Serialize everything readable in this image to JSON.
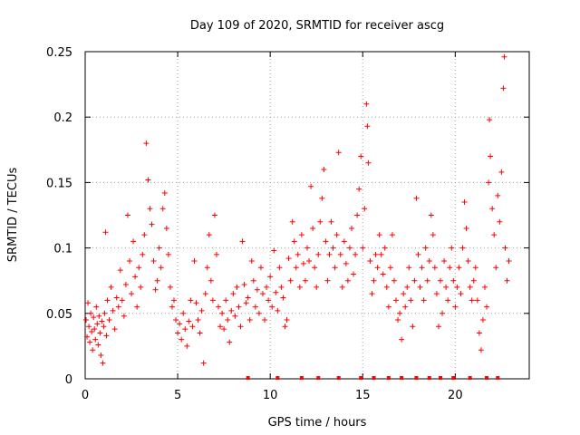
{
  "chart_data": {
    "type": "scatter",
    "title": "Day 109 of 2020, SRMTID for receiver ascg",
    "xlabel": "GPS time / hours",
    "ylabel": "SRMTID / TECUs",
    "xlim": [
      0,
      24
    ],
    "ylim": [
      0,
      0.25
    ],
    "grid": true,
    "marker": "+",
    "marker_color": "#ff0000",
    "x_ticks": [
      {
        "value": 0,
        "label": "0"
      },
      {
        "value": 5,
        "label": "5"
      },
      {
        "value": 10,
        "label": "10"
      },
      {
        "value": 15,
        "label": "15"
      },
      {
        "value": 20,
        "label": "20"
      }
    ],
    "y_ticks": [
      {
        "value": 0,
        "label": "0"
      },
      {
        "value": 0.05,
        "label": "0.05"
      },
      {
        "value": 0.1,
        "label": "0.1"
      },
      {
        "value": 0.15,
        "label": "0.15"
      },
      {
        "value": 0.2,
        "label": "0.2"
      },
      {
        "value": 0.25,
        "label": "0.25"
      }
    ],
    "series": [
      {
        "name": "SRMTID",
        "points": [
          [
            0.05,
            0.045
          ],
          [
            0.1,
            0.032
          ],
          [
            0.15,
            0.058
          ],
          [
            0.2,
            0.04
          ],
          [
            0.25,
            0.028
          ],
          [
            0.3,
            0.05
          ],
          [
            0.35,
            0.036
          ],
          [
            0.4,
            0.022
          ],
          [
            0.45,
            0.047
          ],
          [
            0.5,
            0.038
          ],
          [
            0.55,
            0.03
          ],
          [
            0.6,
            0.055
          ],
          [
            0.65,
            0.042
          ],
          [
            0.7,
            0.026
          ],
          [
            0.75,
            0.048
          ],
          [
            0.8,
            0.035
          ],
          [
            0.85,
            0.018
          ],
          [
            0.9,
            0.044
          ],
          [
            0.95,
            0.012
          ],
          [
            1.0,
            0.04
          ],
          [
            1.05,
            0.05
          ],
          [
            1.1,
            0.112
          ],
          [
            1.15,
            0.033
          ],
          [
            1.2,
            0.06
          ],
          [
            1.3,
            0.045
          ],
          [
            1.4,
            0.07
          ],
          [
            1.5,
            0.052
          ],
          [
            1.6,
            0.038
          ],
          [
            1.7,
            0.062
          ],
          [
            1.8,
            0.055
          ],
          [
            1.9,
            0.083
          ],
          [
            2.0,
            0.06
          ],
          [
            2.1,
            0.048
          ],
          [
            2.2,
            0.072
          ],
          [
            2.3,
            0.125
          ],
          [
            2.4,
            0.09
          ],
          [
            2.5,
            0.065
          ],
          [
            2.6,
            0.105
          ],
          [
            2.7,
            0.078
          ],
          [
            2.8,
            0.055
          ],
          [
            2.9,
            0.085
          ],
          [
            3.0,
            0.07
          ],
          [
            3.1,
            0.095
          ],
          [
            3.2,
            0.11
          ],
          [
            3.3,
            0.18
          ],
          [
            3.4,
            0.152
          ],
          [
            3.5,
            0.13
          ],
          [
            3.6,
            0.118
          ],
          [
            3.7,
            0.09
          ],
          [
            3.8,
            0.068
          ],
          [
            3.9,
            0.075
          ],
          [
            4.0,
            0.1
          ],
          [
            4.1,
            0.085
          ],
          [
            4.2,
            0.13
          ],
          [
            4.3,
            0.142
          ],
          [
            4.4,
            0.115
          ],
          [
            4.5,
            0.095
          ],
          [
            4.6,
            0.07
          ],
          [
            4.7,
            0.055
          ],
          [
            4.8,
            0.06
          ],
          [
            4.9,
            0.045
          ],
          [
            5.0,
            0.035
          ],
          [
            5.1,
            0.042
          ],
          [
            5.2,
            0.03
          ],
          [
            5.3,
            0.05
          ],
          [
            5.4,
            0.038
          ],
          [
            5.5,
            0.025
          ],
          [
            5.6,
            0.044
          ],
          [
            5.7,
            0.06
          ],
          [
            5.8,
            0.04
          ],
          [
            5.9,
            0.09
          ],
          [
            6.0,
            0.058
          ],
          [
            6.1,
            0.045
          ],
          [
            6.2,
            0.035
          ],
          [
            6.3,
            0.052
          ],
          [
            6.4,
            0.012
          ],
          [
            6.5,
            0.065
          ],
          [
            6.6,
            0.085
          ],
          [
            6.7,
            0.11
          ],
          [
            6.8,
            0.075
          ],
          [
            6.9,
            0.06
          ],
          [
            7.0,
            0.125
          ],
          [
            7.1,
            0.095
          ],
          [
            7.2,
            0.055
          ],
          [
            7.3,
            0.04
          ],
          [
            7.4,
            0.05
          ],
          [
            7.5,
            0.038
          ],
          [
            7.6,
            0.06
          ],
          [
            7.7,
            0.045
          ],
          [
            7.8,
            0.028
          ],
          [
            7.9,
            0.052
          ],
          [
            8.0,
            0.065
          ],
          [
            8.1,
            0.048
          ],
          [
            8.2,
            0.07
          ],
          [
            8.3,
            0.055
          ],
          [
            8.4,
            0.04
          ],
          [
            8.5,
            0.105
          ],
          [
            8.6,
            0.072
          ],
          [
            8.7,
            0.058
          ],
          [
            8.8,
            0.062
          ],
          [
            8.9,
            0.045
          ],
          [
            9.0,
            0.09
          ],
          [
            9.1,
            0.075
          ],
          [
            9.2,
            0.055
          ],
          [
            9.3,
            0.068
          ],
          [
            9.4,
            0.05
          ],
          [
            9.5,
            0.085
          ],
          [
            9.6,
            0.065
          ],
          [
            9.7,
            0.045
          ],
          [
            9.8,
            0.07
          ],
          [
            9.9,
            0.06
          ],
          [
            10.0,
            0.078
          ],
          [
            10.1,
            0.055
          ],
          [
            10.2,
            0.098
          ],
          [
            10.3,
            0.066
          ],
          [
            10.4,
            0.052
          ],
          [
            10.5,
            0.085
          ],
          [
            10.6,
            0.07
          ],
          [
            10.7,
            0.062
          ],
          [
            10.8,
            0.04
          ],
          [
            10.9,
            0.045
          ],
          [
            11.0,
            0.092
          ],
          [
            11.1,
            0.075
          ],
          [
            11.2,
            0.12
          ],
          [
            11.3,
            0.105
          ],
          [
            11.4,
            0.085
          ],
          [
            11.5,
            0.095
          ],
          [
            11.6,
            0.07
          ],
          [
            11.7,
            0.11
          ],
          [
            11.8,
            0.088
          ],
          [
            11.9,
            0.075
          ],
          [
            12.0,
            0.1
          ],
          [
            12.1,
            0.09
          ],
          [
            12.2,
            0.147
          ],
          [
            12.3,
            0.115
          ],
          [
            12.4,
            0.085
          ],
          [
            12.5,
            0.07
          ],
          [
            12.6,
            0.095
          ],
          [
            12.7,
            0.12
          ],
          [
            12.8,
            0.138
          ],
          [
            12.9,
            0.16
          ],
          [
            13.0,
            0.105
          ],
          [
            13.1,
            0.075
          ],
          [
            13.2,
            0.095
          ],
          [
            13.3,
            0.12
          ],
          [
            13.4,
            0.1
          ],
          [
            13.5,
            0.085
          ],
          [
            13.6,
            0.11
          ],
          [
            13.7,
            0.173
          ],
          [
            13.8,
            0.095
          ],
          [
            13.9,
            0.07
          ],
          [
            14.0,
            0.105
          ],
          [
            14.1,
            0.088
          ],
          [
            14.2,
            0.075
          ],
          [
            14.3,
            0.1
          ],
          [
            14.4,
            0.115
          ],
          [
            14.5,
            0.08
          ],
          [
            14.6,
            0.095
          ],
          [
            14.7,
            0.125
          ],
          [
            14.8,
            0.145
          ],
          [
            14.9,
            0.17
          ],
          [
            15.0,
            0.1
          ],
          [
            15.1,
            0.13
          ],
          [
            15.2,
            0.21
          ],
          [
            15.25,
            0.193
          ],
          [
            15.3,
            0.165
          ],
          [
            15.4,
            0.09
          ],
          [
            15.5,
            0.065
          ],
          [
            15.6,
            0.075
          ],
          [
            15.7,
            0.095
          ],
          [
            15.8,
            0.085
          ],
          [
            15.9,
            0.11
          ],
          [
            16.0,
            0.095
          ],
          [
            16.1,
            0.08
          ],
          [
            16.2,
            0.1
          ],
          [
            16.3,
            0.07
          ],
          [
            16.4,
            0.055
          ],
          [
            16.5,
            0.085
          ],
          [
            16.6,
            0.11
          ],
          [
            16.7,
            0.075
          ],
          [
            16.8,
            0.06
          ],
          [
            16.9,
            0.045
          ],
          [
            17.0,
            0.05
          ],
          [
            17.1,
            0.03
          ],
          [
            17.2,
            0.065
          ],
          [
            17.3,
            0.055
          ],
          [
            17.4,
            0.07
          ],
          [
            17.5,
            0.085
          ],
          [
            17.6,
            0.06
          ],
          [
            17.7,
            0.04
          ],
          [
            17.8,
            0.075
          ],
          [
            17.9,
            0.138
          ],
          [
            18.0,
            0.095
          ],
          [
            18.1,
            0.07
          ],
          [
            18.2,
            0.085
          ],
          [
            18.3,
            0.06
          ],
          [
            18.4,
            0.1
          ],
          [
            18.5,
            0.075
          ],
          [
            18.6,
            0.09
          ],
          [
            18.7,
            0.125
          ],
          [
            18.8,
            0.11
          ],
          [
            18.9,
            0.085
          ],
          [
            19.0,
            0.065
          ],
          [
            19.1,
            0.04
          ],
          [
            19.2,
            0.075
          ],
          [
            19.3,
            0.05
          ],
          [
            19.4,
            0.09
          ],
          [
            19.5,
            0.07
          ],
          [
            19.6,
            0.06
          ],
          [
            19.7,
            0.085
          ],
          [
            19.8,
            0.1
          ],
          [
            19.9,
            0.075
          ],
          [
            20.0,
            0.055
          ],
          [
            20.1,
            0.07
          ],
          [
            20.2,
            0.085
          ],
          [
            20.3,
            0.065
          ],
          [
            20.4,
            0.1
          ],
          [
            20.5,
            0.135
          ],
          [
            20.6,
            0.115
          ],
          [
            20.7,
            0.09
          ],
          [
            20.8,
            0.07
          ],
          [
            20.9,
            0.06
          ],
          [
            21.0,
            0.075
          ],
          [
            21.1,
            0.085
          ],
          [
            21.2,
            0.06
          ],
          [
            21.3,
            0.035
          ],
          [
            21.4,
            0.022
          ],
          [
            21.5,
            0.045
          ],
          [
            21.6,
            0.07
          ],
          [
            21.7,
            0.055
          ],
          [
            21.8,
            0.15
          ],
          [
            21.85,
            0.198
          ],
          [
            21.9,
            0.17
          ],
          [
            22.0,
            0.13
          ],
          [
            22.1,
            0.11
          ],
          [
            22.2,
            0.085
          ],
          [
            22.3,
            0.14
          ],
          [
            22.4,
            0.12
          ],
          [
            22.5,
            0.158
          ],
          [
            22.6,
            0.222
          ],
          [
            22.65,
            0.246
          ],
          [
            22.7,
            0.1
          ],
          [
            22.8,
            0.075
          ],
          [
            22.9,
            0.09
          ]
        ]
      }
    ],
    "bottom_markers_x": [
      8.8,
      10.4,
      11.7,
      12.6,
      13.7,
      14.9,
      15.6,
      16.4,
      17.1,
      17.9,
      18.6,
      19.2,
      19.9,
      20.8,
      21.7,
      22.3
    ]
  }
}
